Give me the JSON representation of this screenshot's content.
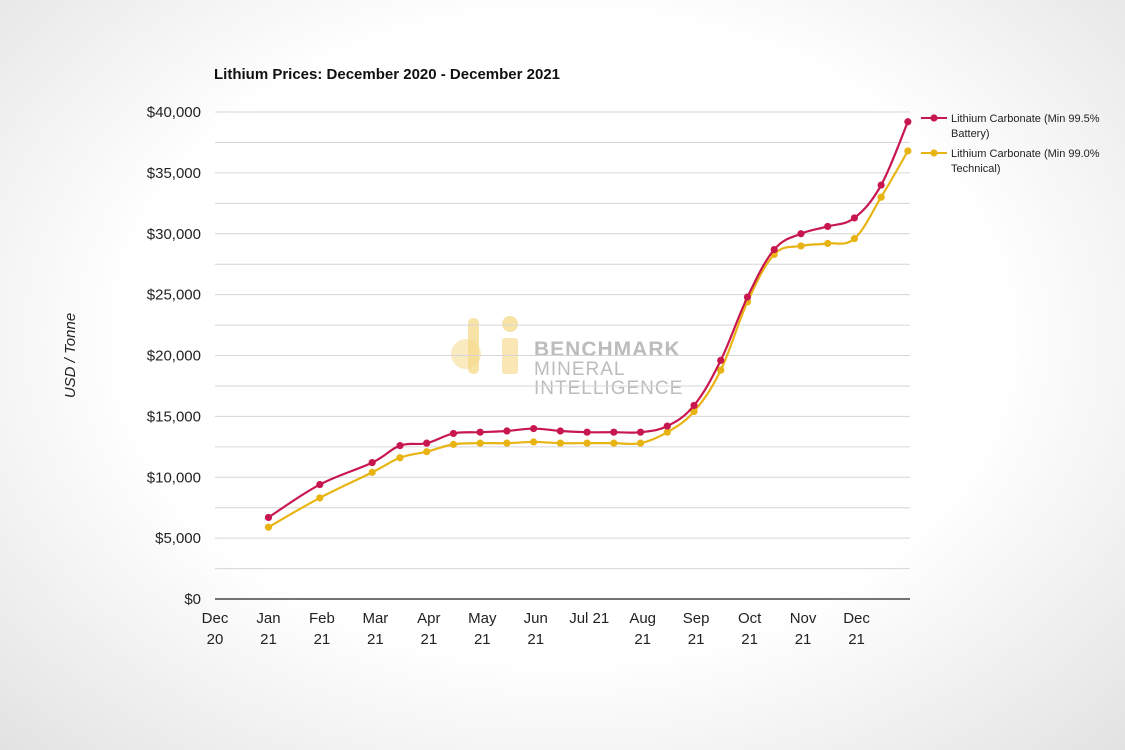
{
  "chart_data": {
    "type": "line",
    "title": "Lithium Prices: December 2020 - December 2021",
    "xlabel": "",
    "ylabel": "USD / Tonne",
    "ylim": [
      0,
      40000
    ],
    "yticks": [
      0,
      5000,
      10000,
      15000,
      20000,
      25000,
      30000,
      35000,
      40000
    ],
    "ytick_labels": [
      "$0",
      "$5,000",
      "$10,000",
      "$15,000",
      "$20,000",
      "$25,000",
      "$30,000",
      "$35,000",
      "$40,000"
    ],
    "xlim": [
      0,
      13
    ],
    "xticks": [
      {
        "pos": 0,
        "line1": "Dec",
        "line2": "20"
      },
      {
        "pos": 1,
        "line1": "Jan",
        "line2": "21"
      },
      {
        "pos": 2,
        "line1": "Feb",
        "line2": "21"
      },
      {
        "pos": 3,
        "line1": "Mar",
        "line2": "21"
      },
      {
        "pos": 4,
        "line1": "Apr",
        "line2": "21"
      },
      {
        "pos": 5,
        "line1": "May",
        "line2": "21"
      },
      {
        "pos": 6,
        "line1": "Jun",
        "line2": "21"
      },
      {
        "pos": 7,
        "line1": "Jul 21",
        "line2": ""
      },
      {
        "pos": 8,
        "line1": "Aug",
        "line2": "21"
      },
      {
        "pos": 9,
        "line1": "Sep",
        "line2": "21"
      },
      {
        "pos": 10,
        "line1": "Oct",
        "line2": "21"
      },
      {
        "pos": 11,
        "line1": "Nov",
        "line2": "21"
      },
      {
        "pos": 12,
        "line1": "Dec",
        "line2": "21"
      }
    ],
    "x": [
      1,
      1.96,
      2.94,
      3.46,
      3.96,
      4.46,
      4.96,
      5.46,
      5.96,
      6.46,
      6.96,
      7.46,
      7.96,
      8.46,
      8.96,
      9.46,
      9.96,
      10.46,
      10.96,
      11.46,
      11.96,
      12.46,
      12.96
    ],
    "series": [
      {
        "name": "Lithium Carbonate (Min 99.5% Battery)",
        "legend_line1": "Lithium Carbonate (Min 99.5%",
        "legend_line2": "Battery)",
        "color": "#c8174f",
        "values": [
          6700,
          9400,
          11200,
          12600,
          12800,
          13600,
          13700,
          13800,
          14000,
          13800,
          13700,
          13700,
          13700,
          14200,
          15900,
          19600,
          24800,
          28700,
          30000,
          30600,
          31300,
          34000,
          39200
        ]
      },
      {
        "name": "Lithium Carbonate (Min 99.0% Technical)",
        "legend_line1": "Lithium Carbonate (Min 99.0%",
        "legend_line2": "Technical)",
        "color": "#e8b414",
        "values": [
          5900,
          8300,
          10400,
          11600,
          12100,
          12700,
          12800,
          12800,
          12900,
          12800,
          12800,
          12800,
          12800,
          13700,
          15400,
          18800,
          24400,
          28300,
          29000,
          29200,
          29600,
          33000,
          36800
        ]
      }
    ],
    "legend_position": "right",
    "grid": true,
    "watermark": {
      "line1": "BENCHMARK",
      "line2": "MINERAL",
      "line3": "INTELLIGENCE"
    }
  }
}
